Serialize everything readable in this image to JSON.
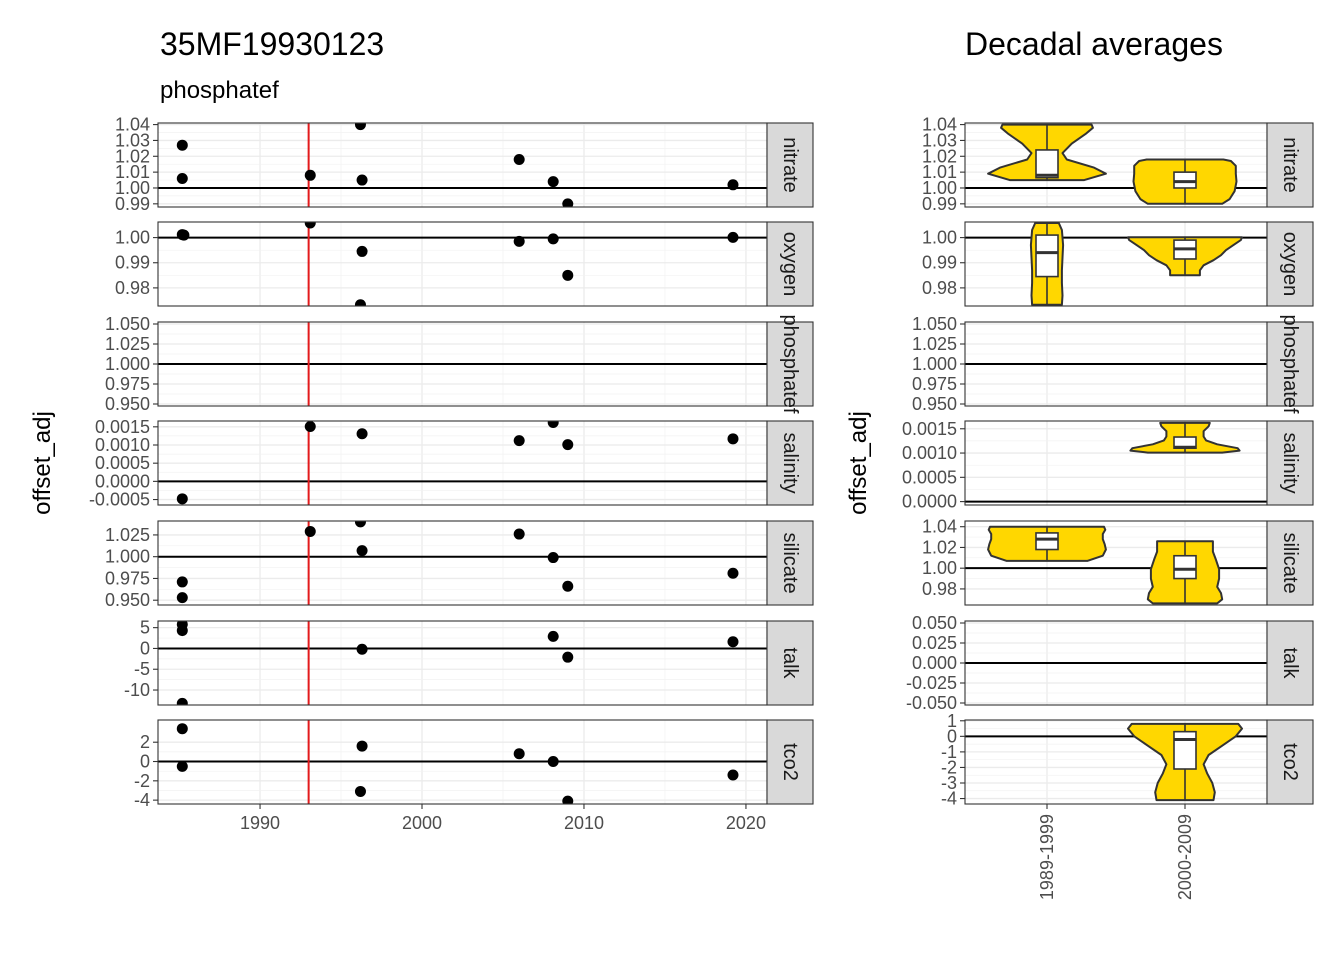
{
  "titles": {
    "left_title": "35MF19930123",
    "left_subtitle": "phosphatef",
    "right_title": "Decadal averages"
  },
  "colors": {
    "reference_line": "#e31a1c",
    "violin_fill": "#ffd700",
    "violin_outline": "#333333",
    "point": "#000000"
  },
  "chart_data": [
    {
      "type": "scatter",
      "title": "35MF19930123",
      "subtitle": "phosphatef",
      "xlabel": "",
      "ylabel": "offset_adj",
      "xlim": [
        1983.7,
        2021.3
      ],
      "x_ticks": [
        1990,
        2000,
        2010,
        2020
      ],
      "x_tick_labels": [
        "1990",
        "2000",
        "2010",
        "2020"
      ],
      "reference_x": 1993,
      "grid": true,
      "facets": [
        {
          "strip": "nitrate",
          "ylim": [
            0.988,
            1.041
          ],
          "y_ticks": [
            0.99,
            1.0,
            1.01,
            1.02,
            1.03,
            1.04
          ],
          "y_tick_labels": [
            "0.99",
            "1.00",
            "1.01",
            "1.02",
            "1.03",
            "1.04"
          ],
          "hline": 1.0,
          "points": [
            [
              1985.2,
              1.027
            ],
            [
              1985.2,
              1.006
            ],
            [
              1993.1,
              1.008
            ],
            [
              1996.2,
              1.04
            ],
            [
              1996.3,
              1.005
            ],
            [
              2006.0,
              1.018
            ],
            [
              2008.1,
              1.004
            ],
            [
              2009.0,
              0.99
            ],
            [
              2019.2,
              1.002
            ]
          ]
        },
        {
          "strip": "oxygen",
          "ylim": [
            0.9728,
            1.0062
          ],
          "y_ticks": [
            0.98,
            0.99,
            1.0
          ],
          "y_tick_labels": [
            "0.98",
            "0.99",
            "1.00"
          ],
          "hline": 1.0,
          "points": [
            [
              1985.2,
              1.0012
            ],
            [
              1985.3,
              1.001
            ],
            [
              1993.1,
              1.0058
            ],
            [
              1996.2,
              0.9733
            ],
            [
              1996.3,
              0.9945
            ],
            [
              2006.0,
              0.9985
            ],
            [
              2008.1,
              0.9995
            ],
            [
              2009.0,
              0.985
            ],
            [
              2019.2,
              1.0001
            ]
          ]
        },
        {
          "strip": "phosphatef",
          "ylim": [
            0.9475,
            1.0525
          ],
          "y_ticks": [
            0.95,
            0.975,
            1.0,
            1.025,
            1.05
          ],
          "y_tick_labels": [
            "0.950",
            "0.975",
            "1.000",
            "1.025",
            "1.050"
          ],
          "hline": 1.0,
          "points": []
        },
        {
          "strip": "salinity",
          "ylim": [
            -0.00065,
            0.00166
          ],
          "y_ticks": [
            -0.0005,
            0.0,
            0.0005,
            0.001,
            0.0015
          ],
          "y_tick_labels": [
            "-0.0005",
            "0.0000",
            "0.0005",
            "0.0010",
            "0.0015"
          ],
          "hline": 0.0,
          "points": [
            [
              1985.2,
              -0.00048
            ],
            [
              1993.1,
              0.00151
            ],
            [
              1996.3,
              0.00131
            ],
            [
              2006.0,
              0.00112
            ],
            [
              2008.1,
              0.00162
            ],
            [
              2009.0,
              0.00101
            ],
            [
              2019.2,
              0.00117
            ]
          ]
        },
        {
          "strip": "silicate",
          "ylim": [
            0.9445,
            1.041
          ],
          "y_ticks": [
            0.95,
            0.975,
            1.0,
            1.025
          ],
          "y_tick_labels": [
            "0.950",
            "0.975",
            "1.000",
            "1.025"
          ],
          "hline": 1.0,
          "points": [
            [
              1985.2,
              0.971
            ],
            [
              1985.2,
              0.953
            ],
            [
              1993.1,
              1.029
            ],
            [
              1996.2,
              1.04
            ],
            [
              1996.3,
              1.007
            ],
            [
              2006.0,
              1.026
            ],
            [
              2008.1,
              0.999
            ],
            [
              2009.0,
              0.966
            ],
            [
              2019.2,
              0.981
            ]
          ]
        },
        {
          "strip": "talk",
          "ylim": [
            -13.6,
            6.6
          ],
          "y_ticks": [
            -10,
            -5,
            0,
            5
          ],
          "y_tick_labels": [
            "-10",
            "-5",
            "0",
            "5"
          ],
          "hline": 0.0,
          "points": [
            [
              1985.2,
              5.8
            ],
            [
              1985.2,
              4.3
            ],
            [
              1985.2,
              -13.2
            ],
            [
              1996.3,
              -0.2
            ],
            [
              2008.1,
              2.9
            ],
            [
              2009.0,
              -2.1
            ],
            [
              2019.2,
              1.6
            ]
          ]
        },
        {
          "strip": "tco2",
          "ylim": [
            -4.4,
            4.3
          ],
          "y_ticks": [
            -4,
            -2,
            0,
            2
          ],
          "y_tick_labels": [
            "-4",
            "-2",
            "0",
            "2"
          ],
          "hline": 0.0,
          "points": [
            [
              1985.2,
              3.4
            ],
            [
              1985.2,
              -0.5
            ],
            [
              1996.2,
              -3.1
            ],
            [
              1996.3,
              1.6
            ],
            [
              2006.0,
              0.8
            ],
            [
              2008.1,
              0.0
            ],
            [
              2009.0,
              -4.1
            ],
            [
              2019.2,
              -1.4
            ]
          ]
        }
      ]
    },
    {
      "type": "violin",
      "title": "Decadal averages",
      "xlabel": "",
      "ylabel": "offset_adj",
      "categories": [
        "1989-1999",
        "2000-2009"
      ],
      "grid": true,
      "facets": [
        {
          "strip": "nitrate",
          "ylim": [
            0.988,
            1.041
          ],
          "y_ticks": [
            0.99,
            1.0,
            1.01,
            1.02,
            1.03,
            1.04
          ],
          "y_tick_labels": [
            "0.99",
            "1.00",
            "1.01",
            "1.02",
            "1.03",
            "1.04"
          ],
          "hline": 1.0,
          "groups": [
            {
              "category": "1989-1999",
              "min": 1.005,
              "max": 1.04,
              "box": {
                "q1": 1.0065,
                "median": 1.008,
                "q3": 1.024
              },
              "profile": [
                [
                  1.005,
                  0.6
                ],
                [
                  1.009,
                  0.95
                ],
                [
                  1.013,
                  0.75
                ],
                [
                  1.018,
                  0.32
                ],
                [
                  1.022,
                  0.25
                ],
                [
                  1.028,
                  0.4
                ],
                [
                  1.034,
                  0.62
                ],
                [
                  1.038,
                  0.74
                ],
                [
                  1.04,
                  0.72
                ]
              ]
            },
            {
              "category": "2000-2009",
              "min": 0.99,
              "max": 1.018,
              "box": {
                "q1": 1.0,
                "median": 1.004,
                "q3": 1.01
              },
              "profile": [
                [
                  0.99,
                  0.6
                ],
                [
                  0.993,
                  0.72
                ],
                [
                  0.998,
                  0.8
                ],
                [
                  1.004,
                  0.83
                ],
                [
                  1.009,
                  0.82
                ],
                [
                  1.014,
                  0.82
                ],
                [
                  1.017,
                  0.74
                ],
                [
                  1.018,
                  0.62
                ]
              ]
            }
          ]
        },
        {
          "strip": "oxygen",
          "ylim": [
            0.9728,
            1.0062
          ],
          "y_ticks": [
            0.98,
            0.99,
            1.0
          ],
          "y_tick_labels": [
            "0.98",
            "0.99",
            "1.00"
          ],
          "hline": 1.0,
          "groups": [
            {
              "category": "1989-1999",
              "min": 0.9733,
              "max": 1.0058,
              "box": {
                "q1": 0.9845,
                "median": 0.994,
                "q3": 1.001
              },
              "profile": [
                [
                  0.9733,
                  0.24
                ],
                [
                  0.977,
                  0.25
                ],
                [
                  0.982,
                  0.24
                ],
                [
                  0.987,
                  0.24
                ],
                [
                  0.992,
                  0.25
                ],
                [
                  0.997,
                  0.26
                ],
                [
                  1.0,
                  0.25
                ],
                [
                  1.003,
                  0.24
                ],
                [
                  1.0058,
                  0.19
                ]
              ]
            },
            {
              "category": "2000-2009",
              "min": 0.985,
              "max": 1.0001,
              "box": {
                "q1": 0.9915,
                "median": 0.9955,
                "q3": 0.999
              },
              "profile": [
                [
                  0.985,
                  0.24
                ],
                [
                  0.987,
                  0.24
                ],
                [
                  0.989,
                  0.3
                ],
                [
                  0.991,
                  0.46
                ],
                [
                  0.993,
                  0.58
                ],
                [
                  0.995,
                  0.66
                ],
                [
                  0.997,
                  0.78
                ],
                [
                  0.999,
                  0.9
                ],
                [
                  1.0001,
                  0.92
                ]
              ]
            }
          ]
        },
        {
          "strip": "phosphatef",
          "ylim": [
            0.9475,
            1.0525
          ],
          "y_ticks": [
            0.95,
            0.975,
            1.0,
            1.025,
            1.05
          ],
          "y_tick_labels": [
            "0.950",
            "0.975",
            "1.000",
            "1.025",
            "1.050"
          ],
          "hline": 1.0,
          "groups": []
        },
        {
          "strip": "salinity",
          "ylim": [
            -7e-05,
            0.00166
          ],
          "y_ticks": [
            0.0,
            0.0005,
            0.001,
            0.0015
          ],
          "y_tick_labels": [
            "0.0000",
            "0.0005",
            "0.0010",
            "0.0015"
          ],
          "hline": 0.0,
          "groups": [
            {
              "category": "2000-2009",
              "min": 0.00101,
              "max": 0.00162,
              "box": {
                "q1": 0.0011,
                "median": 0.00112,
                "q3": 0.00133
              },
              "profile": [
                [
                  0.00101,
                  0.6
                ],
                [
                  0.00105,
                  0.88
                ],
                [
                  0.0011,
                  0.85
                ],
                [
                  0.00118,
                  0.52
                ],
                [
                  0.00126,
                  0.34
                ],
                [
                  0.00134,
                  0.3
                ],
                [
                  0.00145,
                  0.3
                ],
                [
                  0.00155,
                  0.38
                ],
                [
                  0.00162,
                  0.4
                ]
              ]
            }
          ]
        },
        {
          "strip": "silicate",
          "ylim": [
            0.9645,
            1.0455
          ],
          "y_ticks": [
            0.98,
            1.0,
            1.02,
            1.04
          ],
          "y_tick_labels": [
            "0.98",
            "1.00",
            "1.02",
            "1.04"
          ],
          "hline": 1.0,
          "groups": [
            {
              "category": "1989-1999",
              "min": 1.007,
              "max": 1.04,
              "box": {
                "q1": 1.018,
                "median": 1.028,
                "q3": 1.034
              },
              "profile": [
                [
                  1.007,
                  0.65
                ],
                [
                  1.012,
                  0.9
                ],
                [
                  1.018,
                  0.95
                ],
                [
                  1.023,
                  0.93
                ],
                [
                  1.028,
                  0.9
                ],
                [
                  1.033,
                  0.9
                ],
                [
                  1.037,
                  0.94
                ],
                [
                  1.04,
                  0.92
                ]
              ]
            },
            {
              "category": "2000-2009",
              "min": 0.966,
              "max": 1.026,
              "box": {
                "q1": 0.99,
                "median": 0.999,
                "q3": 1.012
              },
              "profile": [
                [
                  0.966,
                  0.52
                ],
                [
                  0.97,
                  0.6
                ],
                [
                  0.976,
                  0.58
                ],
                [
                  0.982,
                  0.52
                ],
                [
                  0.99,
                  0.55
                ],
                [
                  0.999,
                  0.55
                ],
                [
                  1.008,
                  0.5
                ],
                [
                  1.016,
                  0.45
                ],
                [
                  1.022,
                  0.45
                ],
                [
                  1.026,
                  0.45
                ]
              ]
            }
          ]
        },
        {
          "strip": "talk",
          "ylim": [
            -0.0525,
            0.0525
          ],
          "y_ticks": [
            -0.05,
            -0.025,
            0.0,
            0.025,
            0.05
          ],
          "y_tick_labels": [
            "-0.050",
            "-0.025",
            "0.000",
            "0.025",
            "0.050"
          ],
          "hline": 0.0,
          "groups": []
        },
        {
          "strip": "tco2",
          "ylim": [
            -4.35,
            1.05
          ],
          "y_ticks": [
            -4,
            -3,
            -2,
            -1,
            0,
            1
          ],
          "y_tick_labels": [
            "-4",
            "-3",
            "-2",
            "-1",
            "0",
            "1"
          ],
          "hline": 0.0,
          "groups": [
            {
              "category": "2000-2009",
              "min": -4.1,
              "max": 0.8,
              "box": {
                "q1": -2.1,
                "median": -0.2,
                "q3": 0.3
              },
              "profile": [
                [
                  -4.1,
                  0.46
                ],
                [
                  -3.6,
                  0.48
                ],
                [
                  -3.0,
                  0.44
                ],
                [
                  -2.4,
                  0.36
                ],
                [
                  -1.8,
                  0.3
                ],
                [
                  -1.2,
                  0.38
                ],
                [
                  -0.6,
                  0.6
                ],
                [
                  0.0,
                  0.82
                ],
                [
                  0.5,
                  0.92
                ],
                [
                  0.8,
                  0.86
                ]
              ]
            }
          ]
        }
      ]
    }
  ],
  "strip_labels": {
    "nitrate": "nitrate",
    "oxygen": "oxygen",
    "phosphatef": "phosphatef",
    "salinity": "salinity",
    "silicate": "silicate",
    "talk": "talk",
    "tco2": "tco2"
  }
}
